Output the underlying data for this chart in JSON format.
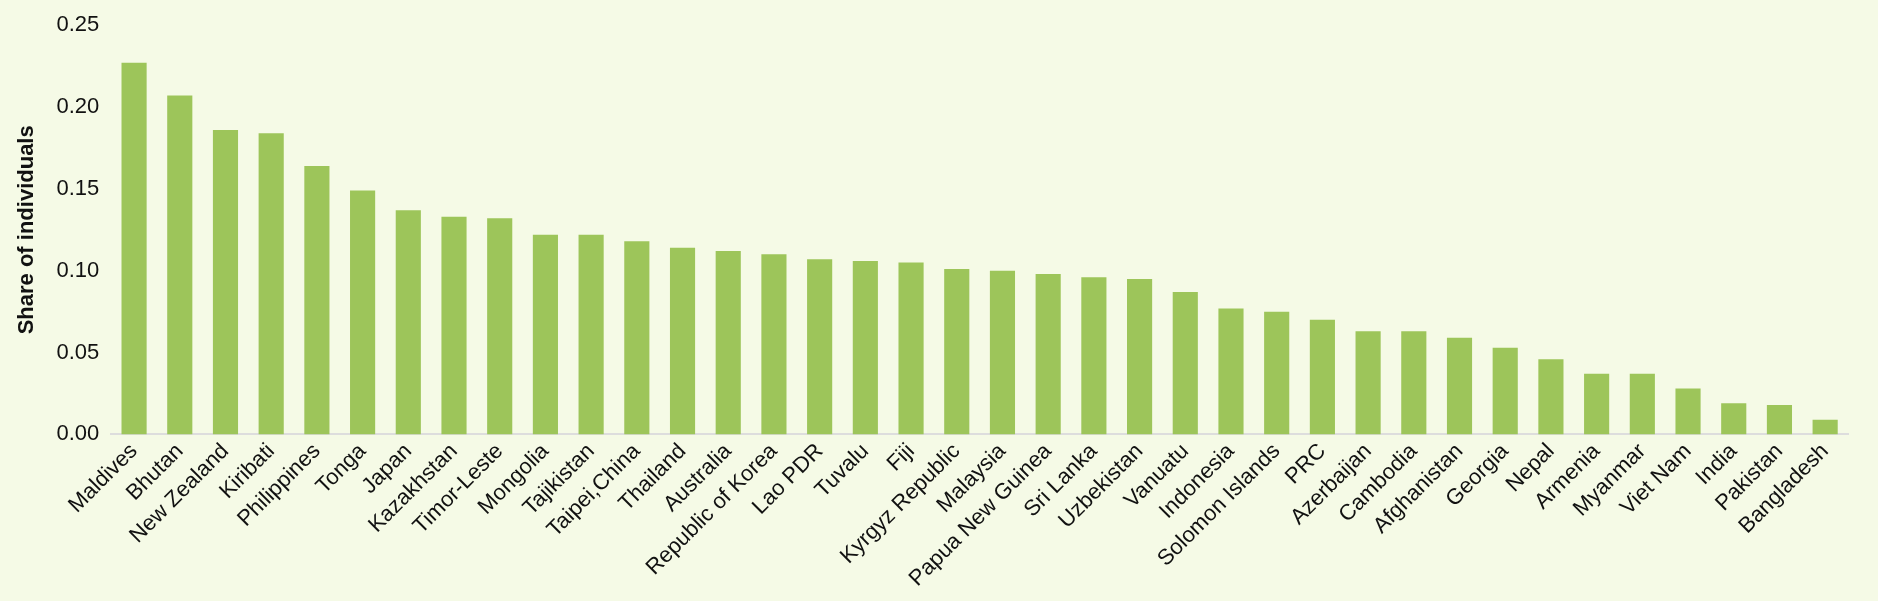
{
  "chart_data": {
    "type": "bar",
    "ylabel": "Share of individuals",
    "categories": [
      "Maldives",
      "Bhutan",
      "New Zealand",
      "Kiribati",
      "Philippines",
      "Tonga",
      "Japan",
      "Kazakhstan",
      "Timor-Leste",
      "Mongolia",
      "Tajikistan",
      "Taipei,China",
      "Thailand",
      "Australia",
      "Republic of Korea",
      "Lao PDR",
      "Tuvalu",
      "Fiji",
      "Kyrgyz Republic",
      "Malaysia",
      "Papua New Guinea",
      "Sri Lanka",
      "Uzbekistan",
      "Vanuatu",
      "Indonesia",
      "Solomon Islands",
      "PRC",
      "Azerbaijan",
      "Cambodia",
      "Afghanistan",
      "Georgia",
      "Nepal",
      "Armenia",
      "Myanmar",
      "Viet Nam",
      "India",
      "Pakistan",
      "Bangladesh"
    ],
    "values": [
      0.227,
      0.207,
      0.186,
      0.184,
      0.164,
      0.149,
      0.137,
      0.133,
      0.132,
      0.122,
      0.122,
      0.118,
      0.114,
      0.112,
      0.11,
      0.107,
      0.106,
      0.105,
      0.101,
      0.1,
      0.098,
      0.096,
      0.095,
      0.087,
      0.077,
      0.075,
      0.07,
      0.063,
      0.063,
      0.059,
      0.053,
      0.046,
      0.037,
      0.037,
      0.028,
      0.019,
      0.018,
      0.009
    ],
    "color": "#9dc55a",
    "ylim": [
      0,
      0.25
    ],
    "yticks": [
      {
        "value": 0,
        "label": "0.00"
      },
      {
        "value": 0.05,
        "label": "0.05"
      },
      {
        "value": 0.1,
        "label": "0.10"
      },
      {
        "value": 0.15,
        "label": "0.15"
      },
      {
        "value": 0.2,
        "label": "0.20"
      },
      {
        "value": 0.25,
        "label": "0.25"
      }
    ],
    "grid": false,
    "legend": false
  }
}
